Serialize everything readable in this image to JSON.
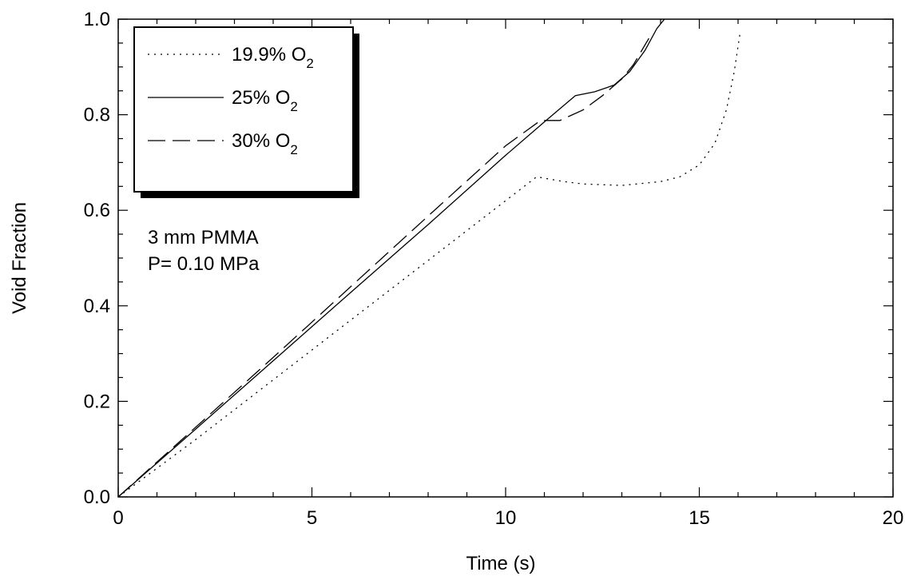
{
  "chart_data": {
    "type": "line",
    "xlabel": "Time (s)",
    "ylabel": "Void Fraction",
    "xlim": [
      0,
      20
    ],
    "ylim": [
      0,
      1.0
    ],
    "xticks": [
      "0",
      "5",
      "10",
      "15",
      "20"
    ],
    "yticks": [
      "0.0",
      "0.2",
      "0.4",
      "0.6",
      "0.8",
      "1.0"
    ],
    "grid": false,
    "legend_position": "top-left",
    "series": [
      {
        "name": "19.9% O",
        "subscript": "2",
        "style": "dotted",
        "x": [
          0,
          2,
          4,
          6,
          8,
          10,
          10.8,
          11.5,
          12,
          13,
          14,
          14.5,
          15,
          15.4,
          15.7,
          15.9,
          16.05
        ],
        "y": [
          0,
          0.12,
          0.245,
          0.37,
          0.495,
          0.62,
          0.67,
          0.66,
          0.655,
          0.652,
          0.66,
          0.67,
          0.695,
          0.74,
          0.81,
          0.89,
          0.97
        ]
      },
      {
        "name": "25% O",
        "subscript": "2",
        "style": "solid",
        "x": [
          0,
          2,
          4,
          6,
          8,
          10,
          11,
          11.8,
          12.3,
          12.8,
          13.2,
          13.6,
          13.9,
          14.1
        ],
        "y": [
          0,
          0.142,
          0.285,
          0.428,
          0.57,
          0.715,
          0.785,
          0.84,
          0.848,
          0.862,
          0.89,
          0.935,
          0.98,
          1.0
        ]
      },
      {
        "name": "30% O",
        "subscript": "2",
        "style": "dashed",
        "x": [
          0,
          2,
          4,
          6,
          8,
          10,
          10.9,
          11.4,
          12,
          12.5,
          13,
          13.3,
          13.7
        ],
        "y": [
          0,
          0.146,
          0.292,
          0.44,
          0.588,
          0.735,
          0.788,
          0.788,
          0.81,
          0.84,
          0.875,
          0.905,
          0.96
        ]
      }
    ],
    "annotations": [
      "3 mm PMMA",
      "P= 0.10 MPa"
    ]
  }
}
